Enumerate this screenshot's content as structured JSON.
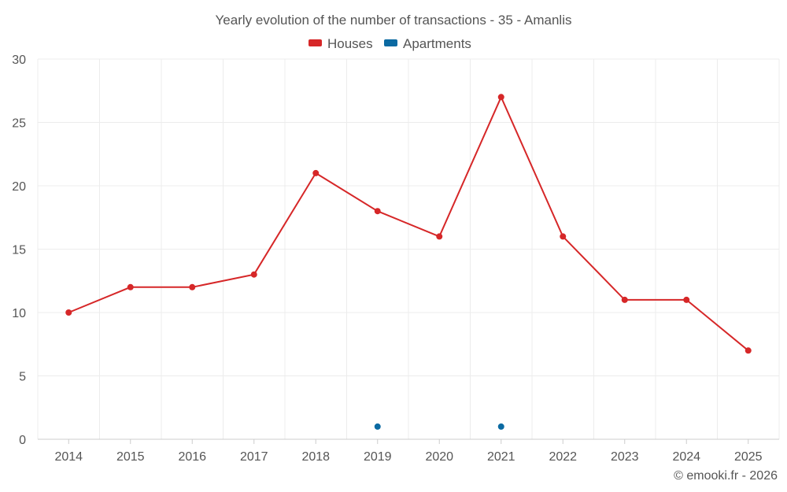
{
  "chart_data": {
    "type": "line",
    "title": "Yearly evolution of the number of transactions - 35 - Amanlis",
    "categories": [
      "2014",
      "2015",
      "2016",
      "2017",
      "2018",
      "2019",
      "2020",
      "2021",
      "2022",
      "2023",
      "2024",
      "2025"
    ],
    "series": [
      {
        "name": "Houses",
        "color": "#d62728",
        "values": [
          10,
          12,
          12,
          13,
          21,
          18,
          16,
          27,
          16,
          11,
          11,
          7
        ]
      },
      {
        "name": "Apartments",
        "color": "#0b6aa2",
        "values": [
          null,
          null,
          null,
          null,
          null,
          1,
          null,
          1,
          null,
          null,
          null,
          null
        ]
      }
    ],
    "ylim": [
      0,
      30
    ],
    "yticks": [
      0,
      5,
      10,
      15,
      20,
      25,
      30
    ],
    "xlabel": "",
    "ylabel": "",
    "grid": true,
    "legend": "top-center",
    "credit": "© emooki.fr - 2026"
  }
}
